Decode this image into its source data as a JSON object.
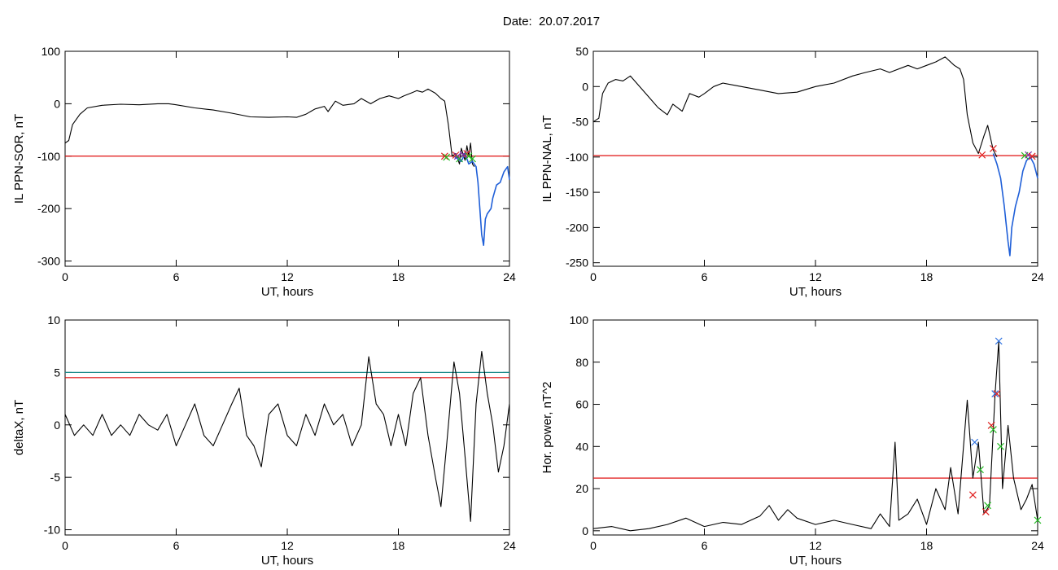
{
  "header": {
    "title": "Date:  20.07.2017"
  },
  "colors": {
    "trace": "#000000",
    "threshold": "#e01010",
    "threshold2": "#1a8a8a",
    "filtered": "#1f5fd8",
    "marker_red": "#e02020",
    "marker_green": "#22bb22",
    "marker_blue": "#2a6fe0",
    "marker_purple": "#7a2aa0"
  },
  "chart_data": [
    {
      "type": "line",
      "ylabel": "IL PPN-SOR, nT",
      "xlabel": "UT, hours",
      "xlim": [
        0,
        24
      ],
      "ylim": [
        -310,
        100
      ],
      "xticks": [
        0,
        6,
        12,
        18,
        24
      ],
      "yticks": [
        100,
        0,
        -100,
        -200,
        -300
      ],
      "threshold": -100,
      "series": [
        {
          "values": [
            [
              0,
              -75
            ],
            [
              0.2,
              -70
            ],
            [
              0.4,
              -40
            ],
            [
              0.8,
              -20
            ],
            [
              1.2,
              -8
            ],
            [
              2,
              -3
            ],
            [
              3,
              -1
            ],
            [
              4,
              -2
            ],
            [
              5,
              0
            ],
            [
              5.6,
              0
            ],
            [
              6,
              -2
            ],
            [
              7,
              -8
            ],
            [
              8,
              -12
            ],
            [
              9,
              -18
            ],
            [
              10,
              -25
            ],
            [
              11,
              -26
            ],
            [
              12,
              -25
            ],
            [
              12.5,
              -26
            ],
            [
              13,
              -20
            ],
            [
              13.5,
              -10
            ],
            [
              14,
              -5
            ],
            [
              14.2,
              -15
            ],
            [
              14.6,
              5
            ],
            [
              15,
              -3
            ],
            [
              15.6,
              0
            ],
            [
              16,
              10
            ],
            [
              16.5,
              0
            ],
            [
              17,
              10
            ],
            [
              17.5,
              15
            ],
            [
              18,
              10
            ],
            [
              18.3,
              15
            ],
            [
              18.8,
              22
            ],
            [
              19,
              25
            ],
            [
              19.3,
              22
            ],
            [
              19.6,
              28
            ],
            [
              20,
              20
            ],
            [
              20.3,
              10
            ],
            [
              20.5,
              5
            ],
            [
              20.7,
              -40
            ],
            [
              20.9,
              -100
            ],
            [
              21.1,
              -95
            ],
            [
              21.3,
              -115
            ],
            [
              21.4,
              -85
            ],
            [
              21.6,
              -108
            ],
            [
              21.7,
              -80
            ],
            [
              21.8,
              -100
            ],
            [
              21.9,
              -75
            ],
            [
              22,
              -115
            ],
            [
              22.1,
              -120
            ]
          ]
        },
        {
          "values": [
            [
              21,
              -100
            ],
            [
              21.2,
              -105
            ],
            [
              21.4,
              -110
            ],
            [
              21.6,
              -95
            ],
            [
              21.8,
              -115
            ],
            [
              22,
              -110
            ],
            [
              22.2,
              -120
            ],
            [
              22.3,
              -150
            ],
            [
              22.4,
              -200
            ],
            [
              22.5,
              -250
            ],
            [
              22.6,
              -270
            ],
            [
              22.7,
              -220
            ],
            [
              22.8,
              -210
            ],
            [
              23,
              -200
            ],
            [
              23.1,
              -180
            ],
            [
              23.3,
              -155
            ],
            [
              23.5,
              -150
            ],
            [
              23.7,
              -130
            ],
            [
              23.9,
              -120
            ],
            [
              24,
              -145
            ]
          ]
        }
      ],
      "markers": [
        {
          "x": 20.5,
          "y": -100,
          "color": "red"
        },
        {
          "x": 20.6,
          "y": -102,
          "color": "green"
        },
        {
          "x": 21.1,
          "y": -98,
          "color": "red"
        },
        {
          "x": 21.2,
          "y": -100,
          "color": "purple"
        },
        {
          "x": 21.3,
          "y": -105,
          "color": "green"
        },
        {
          "x": 21.5,
          "y": -97,
          "color": "purple"
        },
        {
          "x": 21.7,
          "y": -95,
          "color": "red"
        },
        {
          "x": 21.8,
          "y": -100,
          "color": "green"
        },
        {
          "x": 22.0,
          "y": -105,
          "color": "green"
        }
      ]
    },
    {
      "type": "line",
      "ylabel": "IL PPN-NAL, nT",
      "xlabel": "UT, hours",
      "xlim": [
        0,
        24
      ],
      "ylim": [
        -255,
        50
      ],
      "xticks": [
        0,
        6,
        12,
        18,
        24
      ],
      "yticks": [
        50,
        0,
        -50,
        -100,
        -150,
        -200,
        -250
      ],
      "threshold": -98,
      "series": [
        {
          "values": [
            [
              0,
              -50
            ],
            [
              0.3,
              -45
            ],
            [
              0.5,
              -10
            ],
            [
              0.8,
              5
            ],
            [
              1.2,
              10
            ],
            [
              1.6,
              8
            ],
            [
              2,
              15
            ],
            [
              2.5,
              0
            ],
            [
              3,
              -15
            ],
            [
              3.5,
              -30
            ],
            [
              4,
              -40
            ],
            [
              4.3,
              -25
            ],
            [
              4.8,
              -35
            ],
            [
              5.2,
              -10
            ],
            [
              5.7,
              -15
            ],
            [
              6,
              -10
            ],
            [
              6.5,
              0
            ],
            [
              7,
              5
            ],
            [
              8,
              0
            ],
            [
              9,
              -5
            ],
            [
              10,
              -10
            ],
            [
              11,
              -8
            ],
            [
              12,
              0
            ],
            [
              13,
              5
            ],
            [
              14,
              15
            ],
            [
              14.7,
              20
            ],
            [
              15.5,
              25
            ],
            [
              16,
              20
            ],
            [
              17,
              30
            ],
            [
              17.5,
              25
            ],
            [
              18,
              30
            ],
            [
              18.5,
              35
            ],
            [
              19,
              42
            ],
            [
              19.5,
              30
            ],
            [
              19.8,
              25
            ],
            [
              20,
              10
            ],
            [
              20.2,
              -40
            ],
            [
              20.5,
              -80
            ],
            [
              20.8,
              -95
            ],
            [
              21.1,
              -70
            ],
            [
              21.3,
              -55
            ],
            [
              21.6,
              -90
            ],
            [
              21.8,
              -100
            ]
          ]
        },
        {
          "values": [
            [
              21.6,
              -95
            ],
            [
              21.8,
              -110
            ],
            [
              22,
              -130
            ],
            [
              22.2,
              -170
            ],
            [
              22.4,
              -220
            ],
            [
              22.5,
              -240
            ],
            [
              22.6,
              -200
            ],
            [
              22.8,
              -170
            ],
            [
              23,
              -150
            ],
            [
              23.2,
              -120
            ],
            [
              23.4,
              -105
            ],
            [
              23.6,
              -100
            ],
            [
              23.8,
              -110
            ],
            [
              24,
              -130
            ]
          ]
        }
      ],
      "markers": [
        {
          "x": 21.0,
          "y": -97,
          "color": "red"
        },
        {
          "x": 21.6,
          "y": -88,
          "color": "red"
        },
        {
          "x": 23.3,
          "y": -98,
          "color": "green"
        },
        {
          "x": 23.5,
          "y": -97,
          "color": "purple"
        },
        {
          "x": 23.7,
          "y": -99,
          "color": "red"
        }
      ]
    },
    {
      "type": "line",
      "ylabel": "deltaX, nT",
      "xlabel": "UT, hours",
      "xlim": [
        0,
        24
      ],
      "ylim": [
        -10.5,
        10
      ],
      "xticks": [
        0,
        6,
        12,
        18,
        24
      ],
      "yticks": [
        10,
        5,
        0,
        -5,
        -10
      ],
      "threshold": 4.5,
      "threshold2": 5,
      "series": [
        {
          "values": [
            [
              0,
              1
            ],
            [
              0.5,
              -1
            ],
            [
              1,
              0
            ],
            [
              1.5,
              -1
            ],
            [
              2,
              1
            ],
            [
              2.5,
              -1
            ],
            [
              3,
              0
            ],
            [
              3.5,
              -1
            ],
            [
              4,
              1
            ],
            [
              4.5,
              0
            ],
            [
              5,
              -0.5
            ],
            [
              5.5,
              1
            ],
            [
              6,
              -2
            ],
            [
              6.5,
              0
            ],
            [
              7,
              2
            ],
            [
              7.5,
              -1
            ],
            [
              8,
              -2
            ],
            [
              8.5,
              0
            ],
            [
              9,
              2
            ],
            [
              9.4,
              3.5
            ],
            [
              9.8,
              -1
            ],
            [
              10.2,
              -2
            ],
            [
              10.6,
              -4
            ],
            [
              11,
              1
            ],
            [
              11.5,
              2
            ],
            [
              12,
              -1
            ],
            [
              12.5,
              -2
            ],
            [
              13,
              1
            ],
            [
              13.5,
              -1
            ],
            [
              14,
              2
            ],
            [
              14.5,
              0
            ],
            [
              15,
              1
            ],
            [
              15.5,
              -2
            ],
            [
              16,
              0
            ],
            [
              16.4,
              6.5
            ],
            [
              16.8,
              2
            ],
            [
              17.2,
              1
            ],
            [
              17.6,
              -2
            ],
            [
              18,
              1
            ],
            [
              18.4,
              -2
            ],
            [
              18.8,
              3
            ],
            [
              19.2,
              4.5
            ],
            [
              19.6,
              -1
            ],
            [
              20,
              -5
            ],
            [
              20.3,
              -7.8
            ],
            [
              20.6,
              -2
            ],
            [
              21,
              6
            ],
            [
              21.3,
              3
            ],
            [
              21.6,
              -3
            ],
            [
              21.9,
              -9.2
            ],
            [
              22.2,
              2
            ],
            [
              22.5,
              7
            ],
            [
              22.8,
              3
            ],
            [
              23.1,
              0
            ],
            [
              23.4,
              -4.5
            ],
            [
              23.7,
              -2
            ],
            [
              24,
              2
            ]
          ]
        }
      ],
      "markers": []
    },
    {
      "type": "line",
      "ylabel": "Hor. power, nT^2",
      "xlabel": "UT, hours",
      "xlim": [
        0,
        24
      ],
      "ylim": [
        -2,
        100
      ],
      "xticks": [
        0,
        6,
        12,
        18,
        24
      ],
      "yticks": [
        100,
        80,
        60,
        40,
        20,
        0
      ],
      "threshold": 25,
      "series": [
        {
          "values": [
            [
              0,
              1
            ],
            [
              1,
              2
            ],
            [
              2,
              0
            ],
            [
              3,
              1
            ],
            [
              4,
              3
            ],
            [
              5,
              6
            ],
            [
              6,
              2
            ],
            [
              7,
              4
            ],
            [
              8,
              3
            ],
            [
              9,
              7
            ],
            [
              9.5,
              12
            ],
            [
              10,
              5
            ],
            [
              10.5,
              10
            ],
            [
              11,
              6
            ],
            [
              12,
              3
            ],
            [
              13,
              5
            ],
            [
              14,
              3
            ],
            [
              15,
              1
            ],
            [
              15.5,
              8
            ],
            [
              16,
              2
            ],
            [
              16.3,
              42
            ],
            [
              16.5,
              5
            ],
            [
              17,
              8
            ],
            [
              17.5,
              15
            ],
            [
              18,
              3
            ],
            [
              18.5,
              20
            ],
            [
              19,
              10
            ],
            [
              19.3,
              30
            ],
            [
              19.7,
              8
            ],
            [
              20.2,
              62
            ],
            [
              20.5,
              25
            ],
            [
              20.8,
              42
            ],
            [
              21.1,
              8
            ],
            [
              21.4,
              12
            ],
            [
              21.7,
              65
            ],
            [
              21.9,
              90
            ],
            [
              22.1,
              20
            ],
            [
              22.4,
              50
            ],
            [
              22.7,
              25
            ],
            [
              23.1,
              10
            ],
            [
              23.4,
              15
            ],
            [
              23.7,
              22
            ],
            [
              24,
              5
            ]
          ]
        }
      ],
      "markers": [
        {
          "x": 20.6,
          "y": 42,
          "color": "blue"
        },
        {
          "x": 20.5,
          "y": 17,
          "color": "red"
        },
        {
          "x": 20.9,
          "y": 29,
          "color": "green"
        },
        {
          "x": 21.2,
          "y": 9,
          "color": "red"
        },
        {
          "x": 21.3,
          "y": 12,
          "color": "green"
        },
        {
          "x": 21.5,
          "y": 50,
          "color": "red"
        },
        {
          "x": 21.6,
          "y": 48,
          "color": "green"
        },
        {
          "x": 21.7,
          "y": 65,
          "color": "blue"
        },
        {
          "x": 21.8,
          "y": 65,
          "color": "red"
        },
        {
          "x": 21.9,
          "y": 90,
          "color": "blue"
        },
        {
          "x": 22.0,
          "y": 40,
          "color": "green"
        },
        {
          "x": 24.0,
          "y": 5,
          "color": "green"
        }
      ]
    }
  ]
}
